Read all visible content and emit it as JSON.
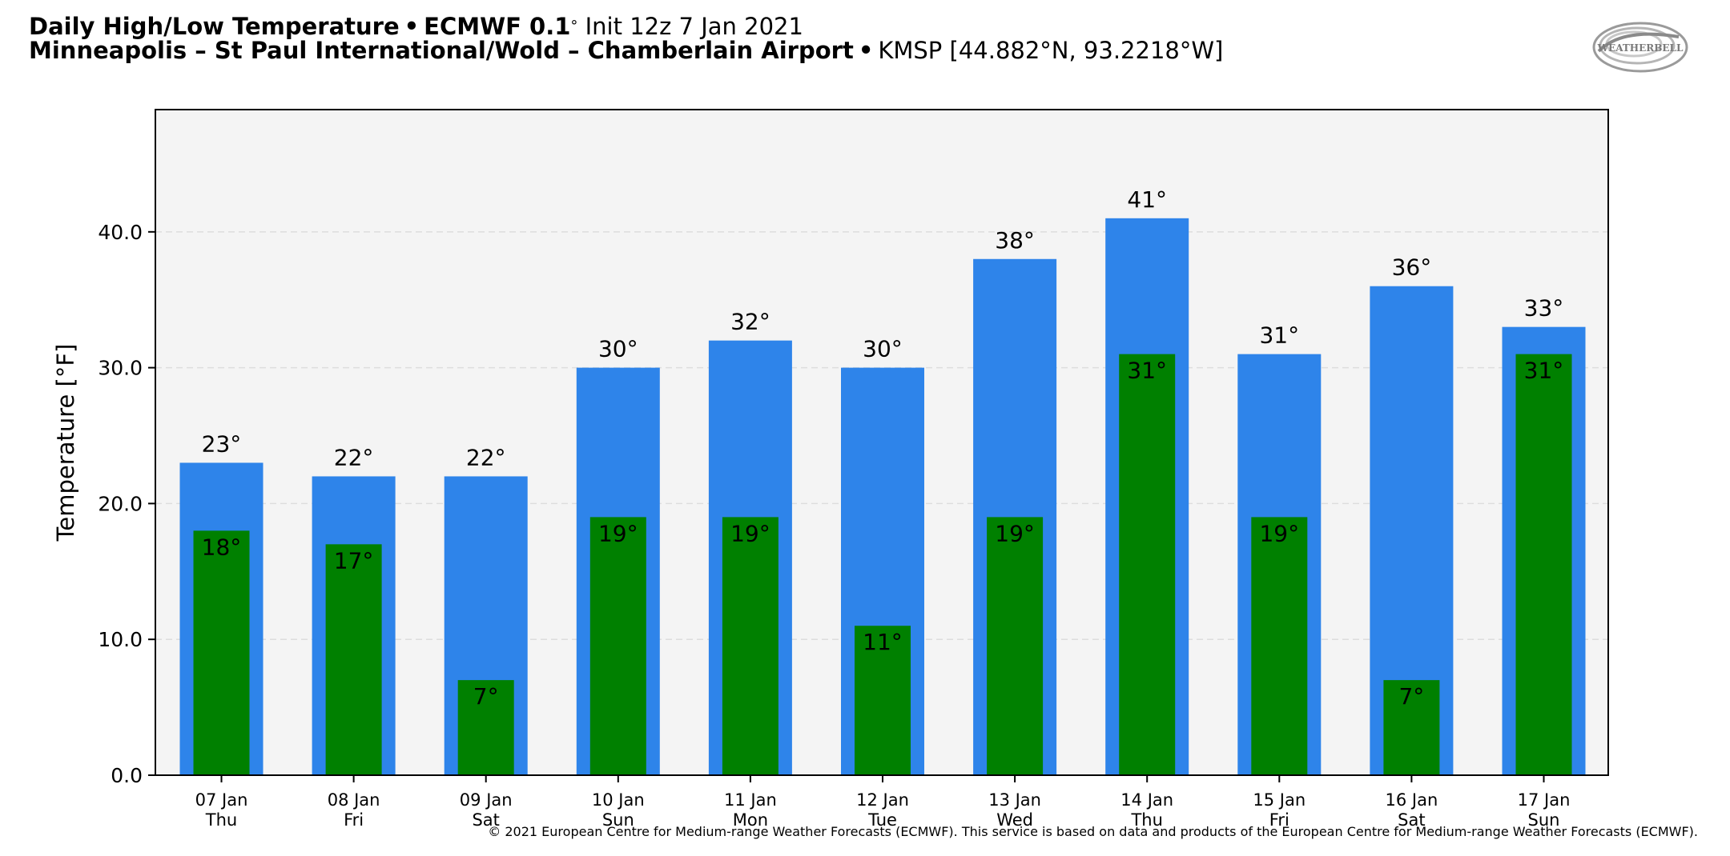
{
  "header": {
    "title_bold": "Daily High/Low Temperature",
    "title_sep": "•",
    "title_model": "ECMWF 0.1",
    "title_deg": "°",
    "title_init": "Init 12z 7 Jan 2021",
    "location_bold": "Minneapolis – St Paul International/Wold – Chamberlain Airport",
    "location_sep": "•",
    "location_rest": "KMSP [44.882°N, 93.2218°W]"
  },
  "logo": {
    "text": "WEATHERBELL",
    "icon": "weatherbell-swirl-logo"
  },
  "footer": {
    "text": "© 2021 European Centre for Medium-range Weather Forecasts (ECMWF). This service is based on data and products of the European Centre for Medium-range Weather Forecasts (ECMWF)."
  },
  "colors": {
    "high": "#2e84ea",
    "low": "#008000",
    "plot_bg": "#f4f4f4",
    "grid": "#dddddd"
  },
  "chart_data": {
    "type": "bar",
    "ylabel": "Temperature [°F]",
    "ylim": [
      0,
      49
    ],
    "yticks": [
      0.0,
      10.0,
      20.0,
      30.0,
      40.0
    ],
    "ytick_labels": [
      "0.0",
      "10.0",
      "20.0",
      "30.0",
      "40.0"
    ],
    "grid": true,
    "categories": [
      {
        "date": "07 Jan",
        "day": "Thu"
      },
      {
        "date": "08 Jan",
        "day": "Fri"
      },
      {
        "date": "09 Jan",
        "day": "Sat"
      },
      {
        "date": "10 Jan",
        "day": "Sun"
      },
      {
        "date": "11 Jan",
        "day": "Mon"
      },
      {
        "date": "12 Jan",
        "day": "Tue"
      },
      {
        "date": "13 Jan",
        "day": "Wed"
      },
      {
        "date": "14 Jan",
        "day": "Thu"
      },
      {
        "date": "15 Jan",
        "day": "Fri"
      },
      {
        "date": "16 Jan",
        "day": "Sat"
      },
      {
        "date": "17 Jan",
        "day": "Sun"
      }
    ],
    "series": [
      {
        "key": "high",
        "values": [
          23,
          22,
          22,
          30,
          32,
          30,
          38,
          41,
          31,
          36,
          33
        ]
      },
      {
        "key": "low",
        "values": [
          18,
          17,
          7,
          19,
          19,
          11,
          19,
          31,
          19,
          7,
          31
        ]
      }
    ],
    "data_label_suffix": "°"
  }
}
